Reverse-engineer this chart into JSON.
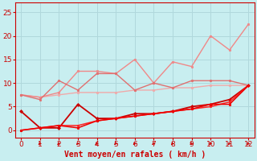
{
  "title": "",
  "xlabel": "Vent moyen/en rafales ( km/h )",
  "background_color": "#c8eef0",
  "grid_color": "#b0d8dc",
  "x": [
    0,
    1,
    2,
    3,
    4,
    5,
    6,
    7,
    8,
    9,
    10,
    11,
    12
  ],
  "lines": [
    {
      "y": [
        7.5,
        7.0,
        7.5,
        8.0,
        8.0,
        8.0,
        8.5,
        8.5,
        9.0,
        9.0,
        9.5,
        9.5,
        9.5
      ],
      "color": "#f0aaaa",
      "linewidth": 1.0,
      "marker": "o",
      "markersize": 1.8
    },
    {
      "y": [
        7.5,
        7.0,
        8.0,
        12.5,
        12.5,
        12.0,
        15.0,
        10.0,
        14.5,
        13.5,
        20.0,
        17.0,
        22.5
      ],
      "color": "#f08888",
      "linewidth": 1.0,
      "marker": "o",
      "markersize": 1.8
    },
    {
      "y": [
        7.5,
        6.5,
        10.5,
        8.5,
        12.0,
        12.0,
        8.5,
        10.0,
        9.0,
        10.5,
        10.5,
        10.5,
        9.5
      ],
      "color": "#e07070",
      "linewidth": 1.0,
      "marker": "o",
      "markersize": 1.8
    },
    {
      "y": [
        4.0,
        0.5,
        0.5,
        5.5,
        2.5,
        2.5,
        3.5,
        3.5,
        4.0,
        5.0,
        5.5,
        6.5,
        9.5
      ],
      "color": "#cc0000",
      "linewidth": 1.3,
      "marker": "D",
      "markersize": 2.0
    },
    {
      "y": [
        0.0,
        0.5,
        1.0,
        1.0,
        2.0,
        2.5,
        3.0,
        3.5,
        4.0,
        4.5,
        5.0,
        6.0,
        9.5
      ],
      "color": "#ff2222",
      "linewidth": 1.1,
      "marker": "o",
      "markersize": 1.8
    },
    {
      "y": [
        0.0,
        0.5,
        1.0,
        0.5,
        2.0,
        2.5,
        3.0,
        3.5,
        4.0,
        4.5,
        5.5,
        5.5,
        9.5
      ],
      "color": "#ee0000",
      "linewidth": 1.1,
      "marker": "o",
      "markersize": 1.8
    }
  ],
  "xlim": [
    -0.3,
    12.3
  ],
  "ylim": [
    -1.5,
    27
  ],
  "yticks": [
    0,
    5,
    10,
    15,
    20,
    25
  ],
  "xticks": [
    0,
    1,
    2,
    3,
    4,
    5,
    6,
    7,
    8,
    9,
    10,
    11,
    12
  ],
  "tick_color": "#cc0000",
  "label_color": "#cc0000",
  "xlabel_fontsize": 7.0,
  "tick_fontsize": 6.5
}
